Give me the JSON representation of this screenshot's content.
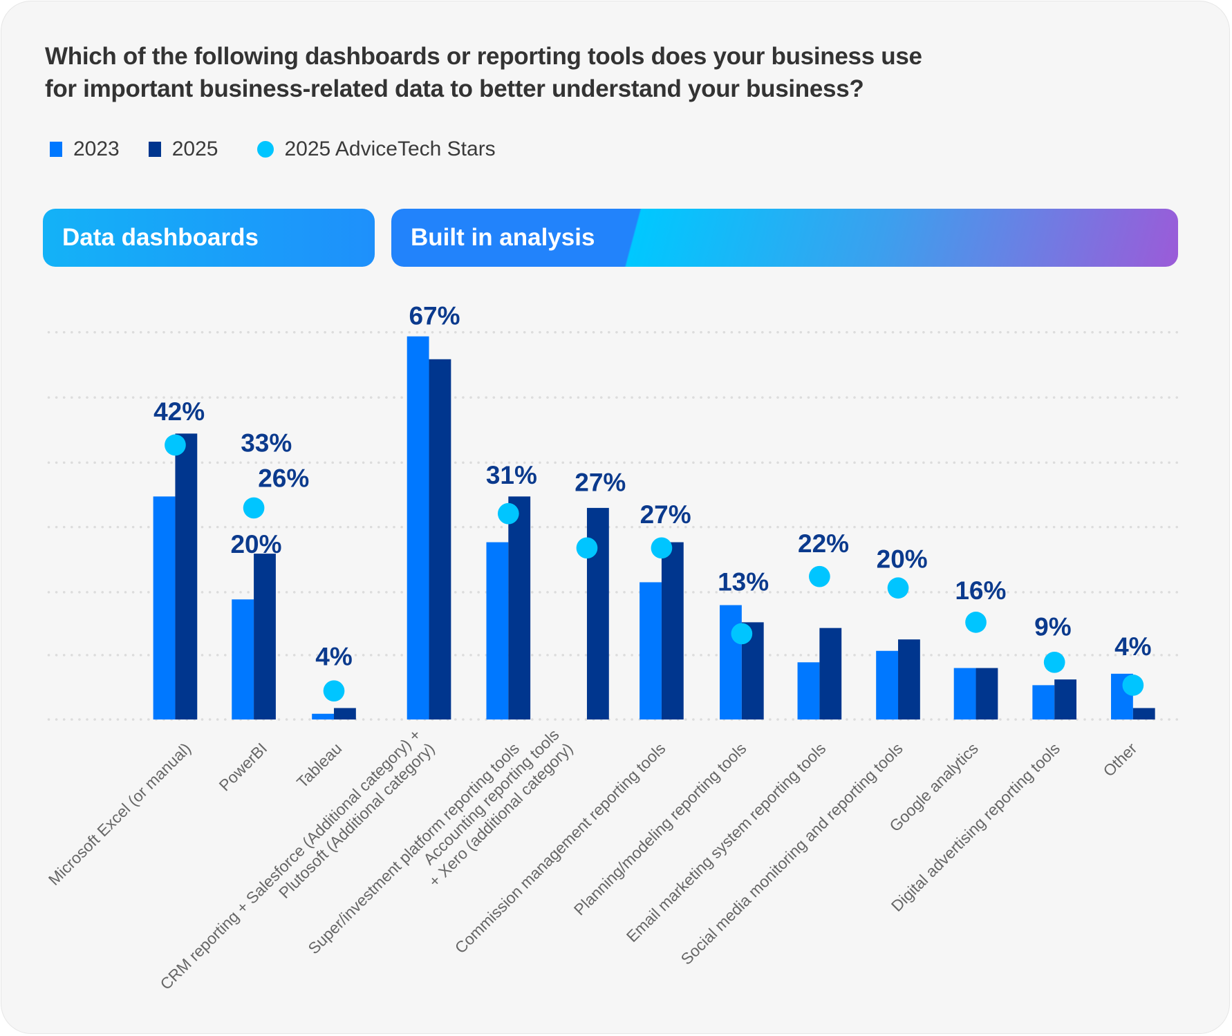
{
  "title_lines": [
    "Which of the following dashboards or reporting tools does your business use",
    "for important business-related data to better understand your business?"
  ],
  "legend": [
    {
      "label": "2023",
      "shape": "square",
      "color": "#0078ff"
    },
    {
      "label": "2025",
      "shape": "square",
      "color": "#00368e"
    },
    {
      "label": "2025 AdviceTech Stars",
      "shape": "circle",
      "color": "#00c5ff"
    }
  ],
  "sections": [
    {
      "label": "Data dashboards",
      "categories": 3
    },
    {
      "label": "Built in analysis",
      "categories": 11
    }
  ],
  "chart_data": {
    "type": "bar",
    "title": "Which of the following dashboards or reporting tools does your business use for important business-related data to better understand your business?",
    "xlabel": "",
    "ylabel": "",
    "ylim": [
      0,
      72
    ],
    "grid": true,
    "legend_position": "top-left",
    "categories": [
      [
        "Microsoft Excel (or manual)"
      ],
      [
        "PowerBI"
      ],
      [
        "Tableau"
      ],
      [
        "CRM reporting + Salesforce (Additional category) +",
        "Plutosoft (Additional category)"
      ],
      [
        "Super/investment platform reporting tools"
      ],
      [
        "Accounting reporting tools",
        "+ Xero (additional category)"
      ],
      [
        "Commission management reporting tools"
      ],
      [
        "Planning/modeling reporting tools"
      ],
      [
        "Email marketing system reporting tools"
      ],
      [
        "Social media monitoring and reporting tools"
      ],
      [
        "Google analytics"
      ],
      [
        "Digital advertising reporting tools"
      ],
      [
        "Other"
      ]
    ],
    "series": [
      {
        "name": "2023",
        "color": "#0078ff",
        "values": [
          39,
          21,
          1,
          67,
          31,
          null,
          24,
          20,
          10,
          12,
          9,
          6,
          8
        ]
      },
      {
        "name": "2025",
        "color": "#00368e",
        "values": [
          50,
          29,
          2,
          63,
          39,
          37,
          31,
          17,
          16,
          14,
          9,
          7,
          2
        ]
      },
      {
        "name": "2025 AdviceTech Stars",
        "color": "#00c5ff",
        "marker": "circle",
        "values": [
          48,
          37,
          5,
          null,
          36,
          30,
          30,
          15,
          25,
          23,
          17,
          10,
          6
        ]
      }
    ],
    "data_labels": [
      [
        "42%"
      ],
      [
        "33%",
        "26%",
        "20%"
      ],
      [
        "4%"
      ],
      [
        "67%"
      ],
      [
        "31%"
      ],
      [
        "27%"
      ],
      [
        "27%"
      ],
      [
        "13%"
      ],
      [
        "22%"
      ],
      [
        "20%"
      ],
      [
        "16%"
      ],
      [
        "9%"
      ],
      [
        "4%"
      ]
    ]
  }
}
